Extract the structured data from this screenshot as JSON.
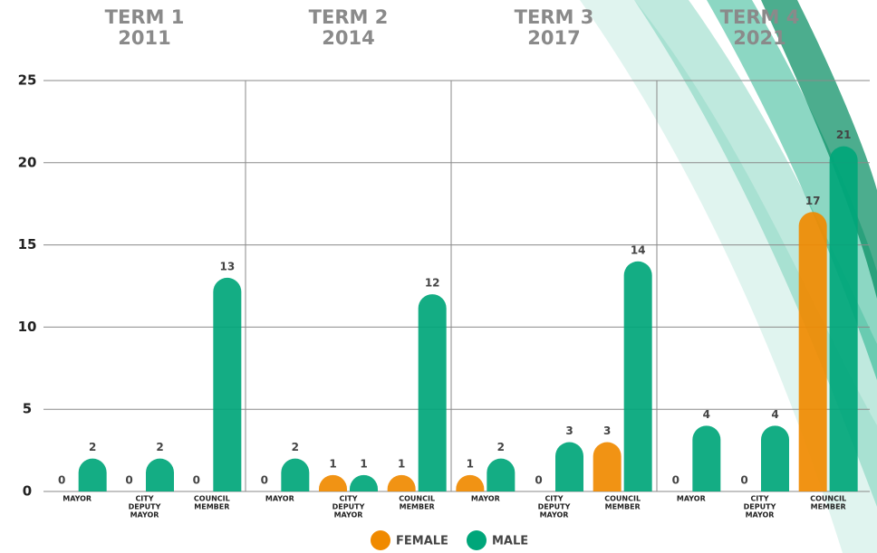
{
  "chart_data": {
    "type": "bar",
    "categories": [
      [
        "MAYOR"
      ],
      [
        "CITY",
        "DEPUTY",
        "MAYOR"
      ],
      [
        "COUNCIL",
        "MEMBER"
      ]
    ],
    "legend": [
      {
        "name": "FEMALE",
        "color": "#f08a00"
      },
      {
        "name": "MALE",
        "color": "#00a67a"
      }
    ],
    "panels": [
      {
        "title": "TERM 1",
        "subtitle": "2011",
        "series": [
          {
            "values": [
              0,
              0,
              0
            ]
          },
          {
            "values": [
              2,
              2,
              13
            ]
          }
        ]
      },
      {
        "title": "TERM 2",
        "subtitle": "2014",
        "series": [
          {
            "values": [
              0,
              1,
              1
            ]
          },
          {
            "values": [
              2,
              1,
              12
            ]
          }
        ]
      },
      {
        "title": "TERM 3",
        "subtitle": "2017",
        "series": [
          {
            "values": [
              1,
              0,
              3
            ]
          },
          {
            "values": [
              2,
              3,
              14
            ]
          }
        ]
      },
      {
        "title": "TERM 4",
        "subtitle": "2021",
        "series": [
          {
            "values": [
              0,
              0,
              17
            ]
          },
          {
            "values": [
              4,
              4,
              21
            ]
          }
        ]
      }
    ],
    "ylim": [
      0,
      25
    ],
    "yticks": [
      0,
      5,
      10,
      15,
      20,
      25
    ],
    "grid": true
  }
}
